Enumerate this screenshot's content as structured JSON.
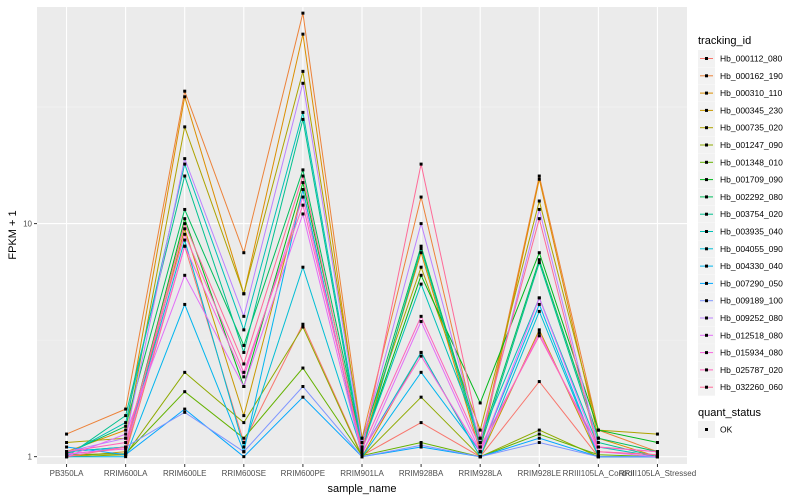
{
  "chart_data": {
    "type": "line",
    "xlabel": "sample_name",
    "ylabel": "FPKM + 1",
    "y_scale": "log10",
    "ylim": [
      0.93,
      85
    ],
    "y_ticks": [
      {
        "value": 1,
        "label": "1"
      },
      {
        "value": 10,
        "label": "10"
      }
    ],
    "grid": true,
    "legend_position": "right",
    "categories": [
      "PB350LA",
      "RRIM600LA",
      "RRIM600LE",
      "RRIM600SE",
      "RRIM600PE",
      "RRIM901LA",
      "RRIM928BA",
      "RRIM928LA",
      "RRIM928LE",
      "RRIII105LA_Control",
      "RRIII105LA_Stressed"
    ],
    "legend_title": "tracking_id",
    "series": [
      {
        "name": "Hb_000112_080",
        "color": "#F8766D",
        "values": [
          1.02,
          1.03,
          8.0,
          1.15,
          3.7,
          1.01,
          1.4,
          1.0,
          2.1,
          1.0,
          1.0
        ]
      },
      {
        "name": "Hb_000162_190",
        "color": "#EC8239",
        "values": [
          1.25,
          1.6,
          37.0,
          7.5,
          80.0,
          1.2,
          13.0,
          1.1,
          16.0,
          1.3,
          1.05
        ]
      },
      {
        "name": "Hb_000310_110",
        "color": "#DB8E00",
        "values": [
          1.05,
          1.3,
          35.0,
          5.0,
          65.0,
          1.1,
          7.5,
          1.05,
          15.5,
          1.2,
          1.0
        ]
      },
      {
        "name": "Hb_000345_230",
        "color": "#C79800",
        "values": [
          1.0,
          1.05,
          9.5,
          1.5,
          14.0,
          1.0,
          2.8,
          1.0,
          3.5,
          1.0,
          1.0
        ]
      },
      {
        "name": "Hb_000735_020",
        "color": "#AEA200",
        "values": [
          1.15,
          1.2,
          26.0,
          5.0,
          45.0,
          1.2,
          6.5,
          1.3,
          12.5,
          1.3,
          1.25
        ]
      },
      {
        "name": "Hb_001247_090",
        "color": "#8FAA00",
        "values": [
          1.0,
          1.02,
          2.3,
          1.4,
          3.6,
          1.0,
          1.8,
          1.0,
          1.3,
          1.0,
          1.0
        ]
      },
      {
        "name": "Hb_001348_010",
        "color": "#64B200",
        "values": [
          1.02,
          1.03,
          1.9,
          1.2,
          2.4,
          1.01,
          1.15,
          1.0,
          1.25,
          1.02,
          1.0
        ]
      },
      {
        "name": "Hb_001709_090",
        "color": "#00B81B",
        "values": [
          1.05,
          1.1,
          10.5,
          2.0,
          15.0,
          1.1,
          6.0,
          1.7,
          7.5,
          1.3,
          1.15
        ]
      },
      {
        "name": "Hb_002292_080",
        "color": "#00BD5C",
        "values": [
          1.03,
          1.35,
          11.5,
          3.0,
          17.0,
          1.15,
          8.0,
          1.15,
          7.0,
          1.2,
          1.05
        ]
      },
      {
        "name": "Hb_003754_020",
        "color": "#00C08E",
        "values": [
          1.0,
          1.5,
          16.0,
          2.8,
          28.0,
          1.05,
          7.8,
          1.1,
          6.8,
          1.15,
          1.0
        ]
      },
      {
        "name": "Hb_003935_040",
        "color": "#00C1B7",
        "values": [
          1.02,
          1.4,
          18.0,
          3.5,
          30.0,
          1.1,
          5.5,
          1.2,
          4.8,
          1.1,
          1.0
        ]
      },
      {
        "name": "Hb_004055_090",
        "color": "#00BDD4",
        "values": [
          1.05,
          1.1,
          8.5,
          1.1,
          6.5,
          1.05,
          2.8,
          1.0,
          4.2,
          1.0,
          1.0
        ]
      },
      {
        "name": "Hb_004330_040",
        "color": "#00B5EE",
        "values": [
          1.0,
          1.0,
          4.5,
          1.05,
          14.0,
          1.0,
          2.3,
          1.05,
          4.5,
          1.0,
          1.0
        ]
      },
      {
        "name": "Hb_007290_050",
        "color": "#00A7FF",
        "values": [
          1.1,
          1.02,
          1.6,
          1.0,
          1.8,
          1.0,
          1.1,
          1.0,
          1.2,
          1.0,
          1.0
        ]
      },
      {
        "name": "Hb_009189_100",
        "color": "#7F96FF",
        "values": [
          1.02,
          1.1,
          1.55,
          1.05,
          2.0,
          1.0,
          1.12,
          1.0,
          1.15,
          1.0,
          1.0
        ]
      },
      {
        "name": "Hb_009252_080",
        "color": "#BC81FF",
        "values": [
          1.05,
          1.2,
          19.0,
          4.0,
          40.0,
          1.15,
          10.0,
          1.15,
          11.5,
          1.1,
          1.05
        ]
      },
      {
        "name": "Hb_012518_080",
        "color": "#E26EF7",
        "values": [
          1.0,
          1.25,
          6.0,
          2.0,
          11.0,
          1.02,
          3.8,
          1.05,
          4.8,
          1.05,
          1.0
        ]
      },
      {
        "name": "Hb_015934_080",
        "color": "#F863DF",
        "values": [
          1.03,
          1.08,
          8.0,
          2.2,
          13.0,
          1.05,
          2.7,
          1.05,
          3.4,
          1.05,
          1.02
        ]
      },
      {
        "name": "Hb_025787_020",
        "color": "#FF62BC",
        "values": [
          1.05,
          1.15,
          9.0,
          2.3,
          12.0,
          1.08,
          4.0,
          1.1,
          3.3,
          1.1,
          1.05
        ]
      },
      {
        "name": "Hb_032260_060",
        "color": "#FF6A98",
        "values": [
          1.0,
          1.1,
          10.0,
          2.5,
          16.0,
          1.05,
          18.0,
          1.2,
          10.5,
          1.05,
          1.02
        ]
      }
    ],
    "shape_legend": {
      "title": "quant_status",
      "items": [
        "OK"
      ]
    }
  }
}
